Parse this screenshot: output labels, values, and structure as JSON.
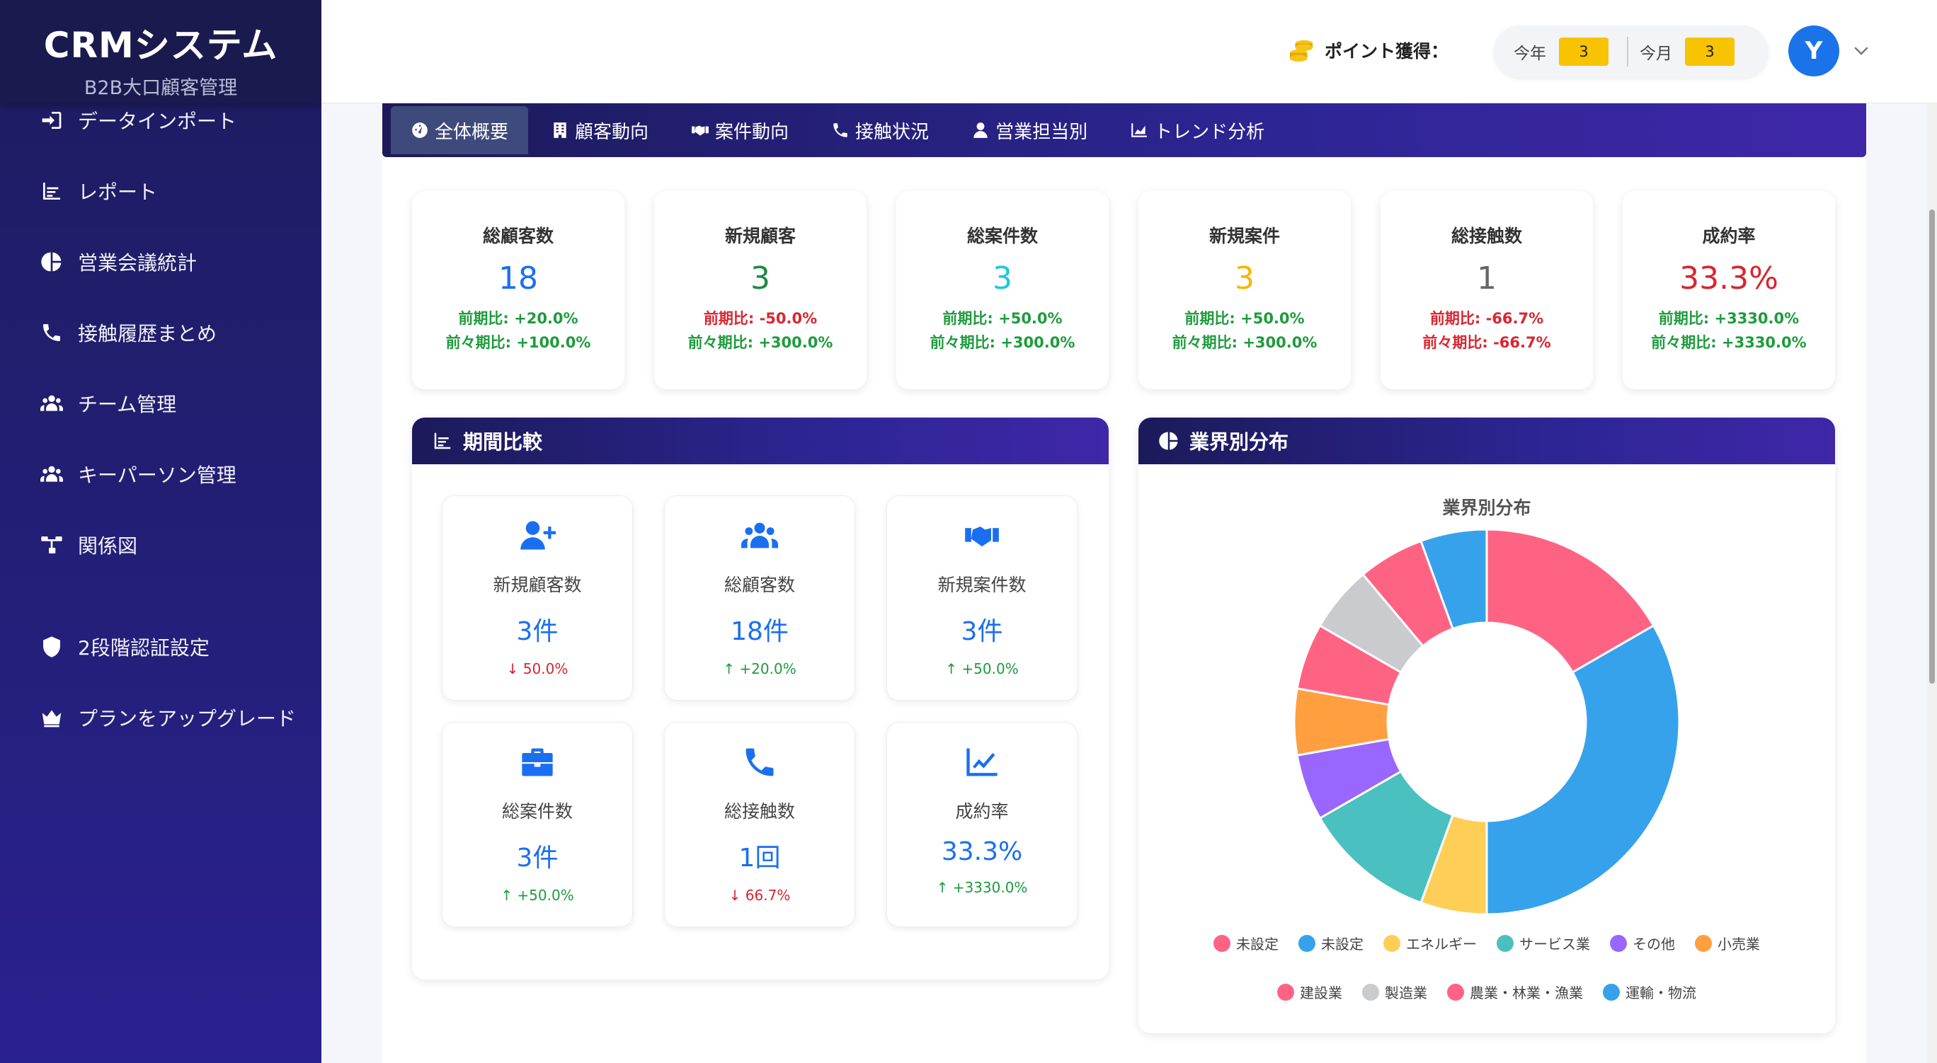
{
  "brand": {
    "title": "CRMシステム",
    "subtitle": "B2B大口顧客管理"
  },
  "sidebar": {
    "items": [
      {
        "label": "データインポート",
        "icon": "import-icon"
      },
      {
        "label": "レポート",
        "icon": "report-chart-icon"
      },
      {
        "label": "営業会議統計",
        "icon": "pie-chart-icon"
      },
      {
        "label": "接触履歴まとめ",
        "icon": "phone-icon"
      },
      {
        "label": "チーム管理",
        "icon": "team-icon"
      },
      {
        "label": "キーパーソン管理",
        "icon": "users-icon"
      },
      {
        "label": "関係図",
        "icon": "sitemap-icon"
      },
      {
        "label": "2段階認証設定",
        "icon": "shield-icon"
      },
      {
        "label": "プランをアップグレード",
        "icon": "crown-icon"
      }
    ]
  },
  "header": {
    "points_label": "ポイント獲得：",
    "this_year_label": "今年",
    "this_year_value": "3",
    "this_month_label": "今月",
    "this_month_value": "3",
    "avatar_initial": "Y"
  },
  "tabs": [
    {
      "label": "全体概要",
      "icon": "dashboard-icon",
      "active": true
    },
    {
      "label": "顧客動向",
      "icon": "building-icon"
    },
    {
      "label": "案件動向",
      "icon": "handshake-icon"
    },
    {
      "label": "接触状況",
      "icon": "phone-icon"
    },
    {
      "label": "営業担当別",
      "icon": "user-icon"
    },
    {
      "label": "トレンド分析",
      "icon": "area-chart-icon"
    }
  ],
  "kpis": [
    {
      "label": "総顧客数",
      "value": "18",
      "color": "#1a6ff0",
      "prev": "前期比: +20.0%",
      "prev2": "前々期比: +100.0%",
      "prev_color": "green",
      "prev2_color": "green"
    },
    {
      "label": "新規顧客",
      "value": "3",
      "color": "#1e8a45",
      "prev": "前期比: -50.0%",
      "prev2": "前々期比: +300.0%",
      "prev_color": "red",
      "prev2_color": "green"
    },
    {
      "label": "総案件数",
      "value": "3",
      "color": "#1ec6e0",
      "prev": "前期比: +50.0%",
      "prev2": "前々期比: +300.0%",
      "prev_color": "green",
      "prev2_color": "green"
    },
    {
      "label": "新規案件",
      "value": "3",
      "color": "#f5b700",
      "prev": "前期比: +50.0%",
      "prev2": "前々期比: +300.0%",
      "prev_color": "green",
      "prev2_color": "green"
    },
    {
      "label": "総接触数",
      "value": "1",
      "color": "#666666",
      "prev": "前期比: -66.7%",
      "prev2": "前々期比: -66.7%",
      "prev_color": "red",
      "prev2_color": "red"
    },
    {
      "label": "成約率",
      "value": "33.3%",
      "color": "#d9252f",
      "prev": "前期比: +3330.0%",
      "prev2": "前々期比: +3330.0%",
      "prev_color": "green",
      "prev2_color": "green"
    }
  ],
  "period_panel": {
    "title": "期間比較",
    "metrics": [
      {
        "label": "新規顧客数",
        "value": "3件",
        "change": "50.0%",
        "arrow": "↓",
        "dir": "red",
        "icon": "user-plus-icon"
      },
      {
        "label": "総顧客数",
        "value": "18件",
        "change": "+20.0%",
        "arrow": "↑",
        "dir": "green",
        "icon": "users-icon"
      },
      {
        "label": "新規案件数",
        "value": "3件",
        "change": "+50.0%",
        "arrow": "↑",
        "dir": "green",
        "icon": "handshake-icon"
      },
      {
        "label": "総案件数",
        "value": "3件",
        "change": "+50.0%",
        "arrow": "↑",
        "dir": "green",
        "icon": "briefcase-icon"
      },
      {
        "label": "総接触数",
        "value": "1回",
        "change": "66.7%",
        "arrow": "↓",
        "dir": "red",
        "icon": "phone-icon"
      },
      {
        "label": "成約率",
        "value": "33.3%",
        "change": "+3330.0%",
        "arrow": "↑",
        "dir": "green",
        "icon": "line-chart-icon"
      }
    ]
  },
  "industry_panel": {
    "title": "業界別分布"
  },
  "chart_data": {
    "type": "pie",
    "title": "業界別分布",
    "categories": [
      "未設定",
      "未設定",
      "エネルギー",
      "サービス業",
      "その他",
      "小売業",
      "建設業",
      "製造業",
      "農業・林業・漁業",
      "運輸・物流"
    ],
    "values": [
      3,
      6,
      1,
      2,
      1,
      1,
      1,
      1,
      1,
      1
    ],
    "colors": [
      "#ff6384",
      "#36a2eb",
      "#ffce56",
      "#4bc0c0",
      "#9966ff",
      "#ff9f40",
      "#ff6384",
      "#c9cbcf",
      "#ff6384",
      "#36a2eb"
    ],
    "legend_position": "bottom",
    "donut": true
  }
}
